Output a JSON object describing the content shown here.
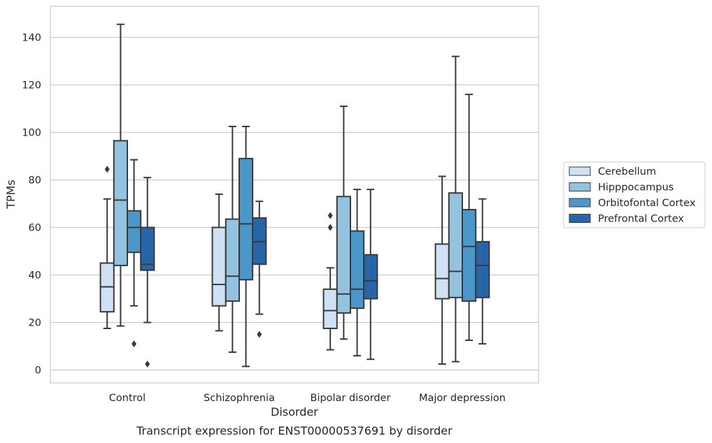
{
  "caption": "Transcript expression for ENST00000537691 by disorder",
  "chart_data": {
    "type": "box",
    "xlabel": "Disorder",
    "ylabel": "TPMs",
    "ylim": [
      -5.5,
      153.5
    ],
    "yticks": [
      0,
      20,
      40,
      60,
      80,
      100,
      120,
      140
    ],
    "grid": true,
    "legend_position": "right",
    "categories": [
      "Control",
      "Schizophrenia",
      "Bipolar disorder",
      "Major depression"
    ],
    "series": [
      {
        "name": "Cerebellum",
        "color": "#cfe1f2",
        "boxes": [
          {
            "whisker_low": 17.5,
            "q1": 24.5,
            "median": 35.0,
            "q3": 45.0,
            "whisker_high": 72.0,
            "outliers": [
              84.5
            ]
          },
          {
            "whisker_low": 16.5,
            "q1": 27.0,
            "median": 36.0,
            "q3": 60.0,
            "whisker_high": 74.0,
            "outliers": []
          },
          {
            "whisker_low": 8.5,
            "q1": 17.5,
            "median": 25.0,
            "q3": 34.0,
            "whisker_high": 43.0,
            "outliers": [
              60.0,
              65.0
            ]
          },
          {
            "whisker_low": 2.5,
            "q1": 30.0,
            "median": 38.5,
            "q3": 53.0,
            "whisker_high": 81.5,
            "outliers": []
          }
        ]
      },
      {
        "name": "Hipppocampus",
        "color": "#93c3df",
        "boxes": [
          {
            "whisker_low": 18.5,
            "q1": 44.0,
            "median": 71.5,
            "q3": 96.5,
            "whisker_high": 145.5,
            "outliers": []
          },
          {
            "whisker_low": 7.5,
            "q1": 29.0,
            "median": 39.5,
            "q3": 63.5,
            "whisker_high": 102.5,
            "outliers": []
          },
          {
            "whisker_low": 13.0,
            "q1": 24.0,
            "median": 32.0,
            "q3": 73.0,
            "whisker_high": 111.0,
            "outliers": []
          },
          {
            "whisker_low": 3.5,
            "q1": 30.5,
            "median": 41.5,
            "q3": 74.5,
            "whisker_high": 132.0,
            "outliers": []
          }
        ]
      },
      {
        "name": "Orbitofontal Cortex",
        "color": "#4b97c9",
        "boxes": [
          {
            "whisker_low": 27.0,
            "q1": 49.5,
            "median": 60.0,
            "q3": 67.0,
            "whisker_high": 88.5,
            "outliers": [
              11.0
            ]
          },
          {
            "whisker_low": 1.5,
            "q1": 38.0,
            "median": 61.5,
            "q3": 89.0,
            "whisker_high": 102.5,
            "outliers": []
          },
          {
            "whisker_low": 6.0,
            "q1": 26.0,
            "median": 34.0,
            "q3": 58.5,
            "whisker_high": 76.0,
            "outliers": []
          },
          {
            "whisker_low": 12.5,
            "q1": 29.0,
            "median": 52.0,
            "q3": 67.5,
            "whisker_high": 116.0,
            "outliers": []
          }
        ]
      },
      {
        "name": "Prefrontal Cortex",
        "color": "#2666a8",
        "boxes": [
          {
            "whisker_low": 20.0,
            "q1": 42.0,
            "median": 44.5,
            "q3": 60.0,
            "whisker_high": 81.0,
            "outliers": [
              2.5
            ]
          },
          {
            "whisker_low": 23.5,
            "q1": 44.5,
            "median": 54.0,
            "q3": 64.0,
            "whisker_high": 71.0,
            "outliers": [
              15.0
            ]
          },
          {
            "whisker_low": 4.5,
            "q1": 30.0,
            "median": 37.5,
            "q3": 48.5,
            "whisker_high": 76.0,
            "outliers": []
          },
          {
            "whisker_low": 11.0,
            "q1": 30.5,
            "median": 44.0,
            "q3": 54.0,
            "whisker_high": 72.0,
            "outliers": []
          }
        ]
      }
    ]
  }
}
